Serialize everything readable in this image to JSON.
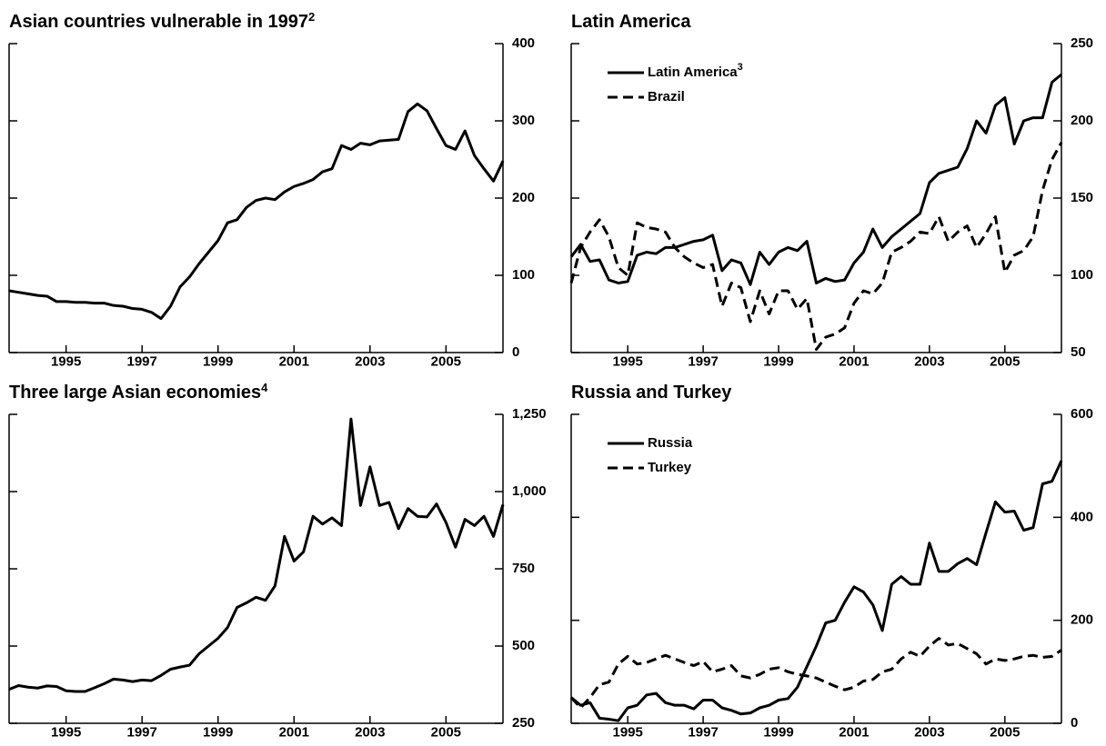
{
  "chart_data": [
    {
      "type": "line",
      "title": "Asian countries vulnerable in 1997",
      "title_footnote": "2",
      "x": [
        1993.5,
        1993.75,
        1994,
        1994.25,
        1994.5,
        1994.75,
        1995,
        1995.25,
        1995.5,
        1995.75,
        1996,
        1996.25,
        1996.5,
        1996.75,
        1997,
        1997.25,
        1997.5,
        1997.75,
        1998,
        1998.25,
        1998.5,
        1998.75,
        1999,
        1999.25,
        1999.5,
        1999.75,
        2000,
        2000.25,
        2000.5,
        2000.75,
        2001,
        2001.25,
        2001.5,
        2001.75,
        2002,
        2002.25,
        2002.5,
        2002.75,
        2003,
        2003.25,
        2003.5,
        2003.75,
        2004,
        2004.25,
        2004.5,
        2004.75,
        2005,
        2005.25,
        2005.5,
        2005.75,
        2006,
        2006.25,
        2006.5
      ],
      "series": [
        {
          "color": "#000000",
          "dash": "solid",
          "values": [
            80,
            78,
            76,
            74,
            73,
            66,
            66,
            65,
            65,
            64,
            64,
            61,
            60,
            57,
            56,
            52,
            44,
            60,
            85,
            98,
            115,
            130,
            145,
            168,
            172,
            188,
            197,
            200,
            198,
            208,
            215,
            219,
            224,
            234,
            238,
            268,
            263,
            271,
            269,
            274,
            275,
            276,
            312,
            322,
            313,
            290,
            268,
            263,
            287,
            255,
            238,
            222,
            248
          ]
        }
      ],
      "xlim": [
        1993.5,
        2006.5
      ],
      "xticks": [
        1995,
        1997,
        1999,
        2001,
        2003,
        2005
      ],
      "ylim": [
        0,
        400
      ],
      "yticks": [
        0,
        100,
        200,
        300,
        400
      ]
    },
    {
      "type": "line",
      "title": "Latin America",
      "x": [
        1993.5,
        1993.75,
        1994,
        1994.25,
        1994.5,
        1994.75,
        1995,
        1995.25,
        1995.5,
        1995.75,
        1996,
        1996.25,
        1996.5,
        1996.75,
        1997,
        1997.25,
        1997.5,
        1997.75,
        1998,
        1998.25,
        1998.5,
        1998.75,
        1999,
        1999.25,
        1999.5,
        1999.75,
        2000,
        2000.25,
        2000.5,
        2000.75,
        2001,
        2001.25,
        2001.5,
        2001.75,
        2002,
        2002.25,
        2002.5,
        2002.75,
        2003,
        2003.25,
        2003.5,
        2003.75,
        2004,
        2004.25,
        2004.5,
        2004.75,
        2005,
        2005.25,
        2005.5,
        2005.75,
        2006,
        2006.25,
        2006.5
      ],
      "series": [
        {
          "name": "Latin America",
          "footnote": "3",
          "color": "#000000",
          "dash": "solid",
          "values": [
            112,
            120,
            109,
            110,
            97,
            95,
            96,
            113,
            115,
            114,
            118,
            118,
            120,
            122,
            123,
            126,
            103,
            110,
            108,
            94,
            115,
            107,
            115,
            118,
            116,
            122,
            95,
            98,
            96,
            97,
            108,
            115,
            130,
            118,
            125,
            130,
            135,
            140,
            160,
            166,
            168,
            170,
            182,
            200,
            192,
            210,
            215,
            185,
            200,
            202,
            202,
            225,
            230
          ]
        },
        {
          "name": "Brazil",
          "color": "#000000",
          "dash": "dashed",
          "values": [
            95,
            118,
            128,
            136,
            125,
            105,
            100,
            134,
            131,
            130,
            128,
            118,
            112,
            108,
            105,
            107,
            80,
            95,
            92,
            70,
            90,
            75,
            90,
            90,
            78,
            85,
            52,
            60,
            62,
            66,
            82,
            90,
            88,
            95,
            115,
            118,
            122,
            128,
            127,
            138,
            122,
            128,
            132,
            118,
            127,
            138,
            102,
            113,
            116,
            125,
            155,
            175,
            186
          ]
        }
      ],
      "legend": "upper left",
      "xlim": [
        1993.5,
        2006.5
      ],
      "xticks": [
        1995,
        1997,
        1999,
        2001,
        2003,
        2005
      ],
      "ylim": [
        50,
        250
      ],
      "yticks": [
        50,
        100,
        150,
        200,
        250
      ]
    },
    {
      "type": "line",
      "title": "Three large Asian economies",
      "title_footnote": "4",
      "x": [
        1993.5,
        1993.75,
        1994,
        1994.25,
        1994.5,
        1994.75,
        1995,
        1995.25,
        1995.5,
        1995.75,
        1996,
        1996.25,
        1996.5,
        1996.75,
        1997,
        1997.25,
        1997.5,
        1997.75,
        1998,
        1998.25,
        1998.5,
        1998.75,
        1999,
        1999.25,
        1999.5,
        1999.75,
        2000,
        2000.25,
        2000.5,
        2000.75,
        2001,
        2001.25,
        2001.5,
        2001.75,
        2002,
        2002.25,
        2002.5,
        2002.75,
        2003,
        2003.25,
        2003.5,
        2003.75,
        2004,
        2004.25,
        2004.5,
        2004.75,
        2005,
        2005.25,
        2005.5,
        2005.75,
        2006,
        2006.25,
        2006.5
      ],
      "series": [
        {
          "color": "#000000",
          "dash": "solid",
          "values": [
            360,
            372,
            367,
            364,
            371,
            369,
            355,
            353,
            353,
            365,
            378,
            393,
            390,
            385,
            390,
            388,
            405,
            425,
            432,
            438,
            475,
            500,
            525,
            560,
            625,
            640,
            658,
            648,
            695,
            855,
            775,
            805,
            920,
            895,
            915,
            890,
            1235,
            955,
            1080,
            955,
            965,
            880,
            945,
            920,
            918,
            960,
            900,
            820,
            910,
            890,
            920,
            855,
            958
          ]
        }
      ],
      "xlim": [
        1993.5,
        2006.5
      ],
      "xticks": [
        1995,
        1997,
        1999,
        2001,
        2003,
        2005
      ],
      "ylim": [
        250,
        1250
      ],
      "yticks": [
        250,
        500,
        750,
        {
          "value": 1000,
          "label": "1,000"
        },
        {
          "value": 1250,
          "label": "1,250"
        }
      ]
    },
    {
      "type": "line",
      "title": "Russia and Turkey",
      "x": [
        1993.5,
        1993.75,
        1994,
        1994.25,
        1994.5,
        1994.75,
        1995,
        1995.25,
        1995.5,
        1995.75,
        1996,
        1996.25,
        1996.5,
        1996.75,
        1997,
        1997.25,
        1997.5,
        1997.75,
        1998,
        1998.25,
        1998.5,
        1998.75,
        1999,
        1999.25,
        1999.5,
        1999.75,
        2000,
        2000.25,
        2000.5,
        2000.75,
        2001,
        2001.25,
        2001.5,
        2001.75,
        2002,
        2002.25,
        2002.5,
        2002.75,
        2003,
        2003.25,
        2003.5,
        2003.75,
        2004,
        2004.25,
        2004.5,
        2004.75,
        2005,
        2005.25,
        2005.5,
        2005.75,
        2006,
        2006.25,
        2006.5
      ],
      "series": [
        {
          "name": "Russia",
          "color": "#000000",
          "dash": "solid",
          "values": [
            50,
            35,
            40,
            10,
            8,
            5,
            30,
            35,
            55,
            58,
            40,
            35,
            35,
            28,
            45,
            45,
            30,
            25,
            18,
            20,
            30,
            35,
            45,
            48,
            70,
            110,
            150,
            195,
            200,
            235,
            265,
            255,
            230,
            180,
            270,
            285,
            270,
            270,
            350,
            295,
            295,
            310,
            320,
            308,
            370,
            430,
            410,
            412,
            375,
            380,
            465,
            470,
            510
          ]
        },
        {
          "name": "Turkey",
          "color": "#000000",
          "dash": "dashed",
          "values": [
            50,
            30,
            50,
            75,
            80,
            115,
            130,
            115,
            118,
            125,
            132,
            125,
            118,
            112,
            120,
            100,
            105,
            112,
            92,
            88,
            95,
            105,
            108,
            100,
            95,
            92,
            88,
            80,
            72,
            65,
            70,
            82,
            85,
            100,
            105,
            125,
            138,
            130,
            150,
            165,
            152,
            155,
            145,
            135,
            115,
            125,
            122,
            125,
            130,
            132,
            128,
            130,
            142
          ]
        }
      ],
      "legend": "upper left",
      "xlim": [
        1993.5,
        2006.5
      ],
      "xticks": [
        1995,
        1997,
        1999,
        2001,
        2003,
        2005
      ],
      "ylim": [
        0,
        600
      ],
      "yticks": [
        0,
        200,
        400,
        600
      ]
    }
  ]
}
